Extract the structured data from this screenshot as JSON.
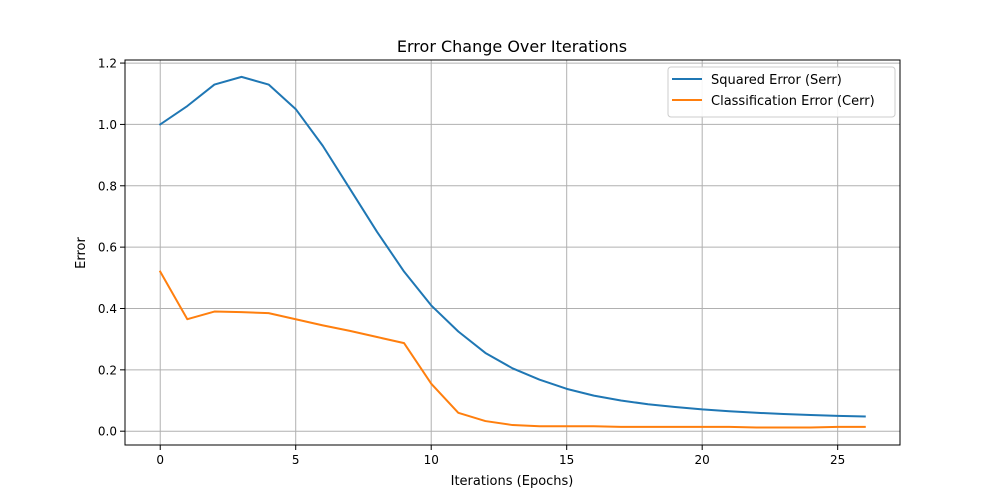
{
  "chart_data": {
    "type": "line",
    "title": "Error Change Over Iterations",
    "xlabel": "Iterations (Epochs)",
    "ylabel": "Error",
    "xlim": [
      -1.3,
      27.3
    ],
    "ylim": [
      -0.045,
      1.21
    ],
    "xticks": [
      0,
      5,
      10,
      15,
      20,
      25
    ],
    "xtick_labels": [
      "0",
      "5",
      "10",
      "15",
      "20",
      "25"
    ],
    "yticks": [
      0.0,
      0.2,
      0.4,
      0.6,
      0.8,
      1.0,
      1.2
    ],
    "ytick_labels": [
      "0.0",
      "0.2",
      "0.4",
      "0.6",
      "0.8",
      "1.0",
      "1.2"
    ],
    "grid": true,
    "legend_position": "top-right",
    "x": [
      0,
      1,
      2,
      3,
      4,
      5,
      6,
      7,
      8,
      9,
      10,
      11,
      12,
      13,
      14,
      15,
      16,
      17,
      18,
      19,
      20,
      21,
      22,
      23,
      24,
      25,
      26
    ],
    "series": [
      {
        "name": "Squared Error (Serr)",
        "color": "#1f77b4",
        "values": [
          1.0,
          1.06,
          1.13,
          1.155,
          1.13,
          1.05,
          0.93,
          0.79,
          0.65,
          0.52,
          0.41,
          0.325,
          0.255,
          0.205,
          0.168,
          0.138,
          0.116,
          0.1,
          0.088,
          0.079,
          0.071,
          0.065,
          0.06,
          0.056,
          0.053,
          0.05,
          0.048
        ],
        "legend_label": "Squared Error (Serr)"
      },
      {
        "name": "Classification Error (Cerr)",
        "color": "#ff7f0e",
        "values": [
          0.52,
          0.365,
          0.39,
          0.388,
          0.385,
          0.365,
          0.345,
          0.327,
          0.307,
          0.287,
          0.155,
          0.06,
          0.033,
          0.02,
          0.016,
          0.016,
          0.016,
          0.014,
          0.014,
          0.014,
          0.014,
          0.014,
          0.012,
          0.012,
          0.012,
          0.014,
          0.014
        ],
        "legend_label": "Classification Error (Cerr)"
      }
    ]
  }
}
